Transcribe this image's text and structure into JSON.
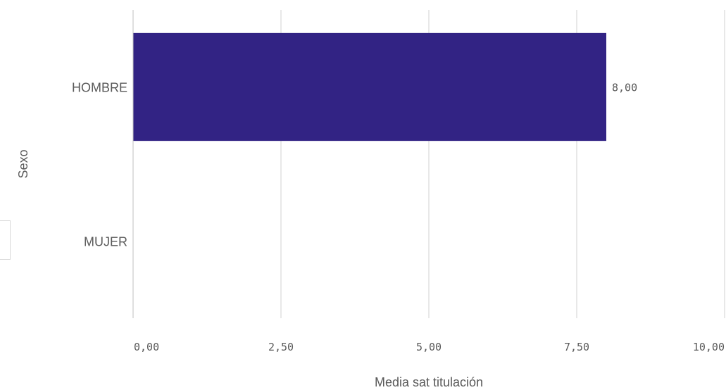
{
  "chart_data": {
    "type": "bar",
    "orientation": "horizontal",
    "categories": [
      "HOMBRE",
      "MUJER"
    ],
    "values": [
      8.0,
      null
    ],
    "data_labels": [
      "8,00",
      ""
    ],
    "xlabel": "Media sat titulación",
    "ylabel": "Sexo",
    "xlim": [
      0,
      10
    ],
    "x_ticks": [
      "0,00",
      "2,50",
      "5,00",
      "7,50",
      "10,00"
    ],
    "grid": true,
    "bar_color": "#322384"
  }
}
